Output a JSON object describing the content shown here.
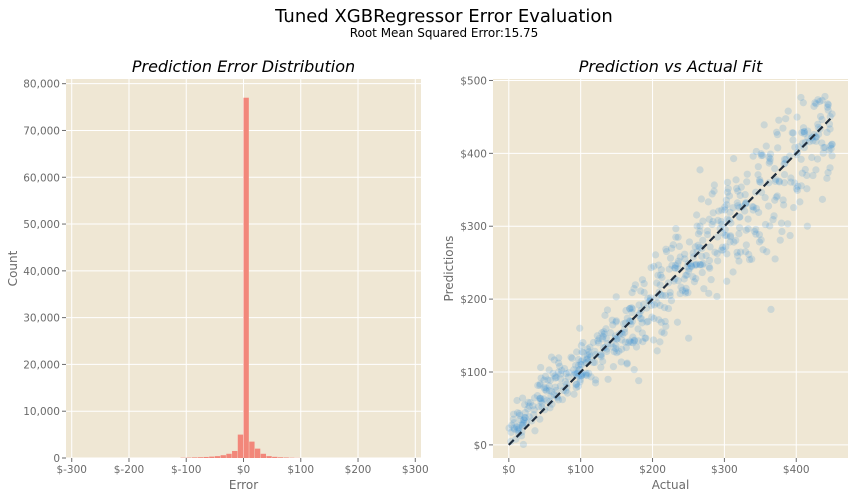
{
  "figure": {
    "title": "Tuned XGBRegressor Error Evaluation",
    "subtitle": "Root Mean Squared Error:15.75",
    "background": "#ffffff",
    "panel_background": "#efe7d4",
    "grid_color": "#ffffff",
    "tick_color": "#6b6b6b"
  },
  "chart_data": [
    {
      "type": "bar",
      "title": "Prediction Error Distribution",
      "xlabel": "Error",
      "ylabel": "Count",
      "xlim": [
        -310,
        310
      ],
      "ylim": [
        0,
        81000
      ],
      "grid": true,
      "color": "#f2877a",
      "xticks": [
        -300,
        -200,
        -100,
        0,
        100,
        200,
        300
      ],
      "xtick_labels": [
        "$-300",
        "$-200",
        "$-100",
        "$0",
        "$100",
        "$200",
        "$300"
      ],
      "yticks": [
        0,
        10000,
        20000,
        30000,
        40000,
        50000,
        60000,
        70000,
        80000
      ],
      "ytick_labels": [
        "0",
        "10,000",
        "20,000",
        "30,000",
        "40,000",
        "50,000",
        "60,000",
        "70,000",
        "80,000"
      ],
      "bin_edges": [
        -110,
        -100,
        -90,
        -80,
        -70,
        -60,
        -50,
        -40,
        -30,
        -20,
        -10,
        0,
        10,
        20,
        30,
        40,
        50,
        60,
        70,
        80,
        90,
        100
      ],
      "values": [
        60,
        80,
        120,
        160,
        220,
        300,
        400,
        600,
        900,
        1500,
        5000,
        77000,
        3500,
        2000,
        900,
        400,
        250,
        150,
        100,
        60,
        30
      ]
    },
    {
      "type": "scatter",
      "title": "Prediction vs Actual Fit",
      "xlabel": "Actual",
      "ylabel": "Predictions",
      "xlim": [
        -22,
        472
      ],
      "ylim": [
        -18,
        502
      ],
      "grid": true,
      "point_color": "#2b88d8",
      "line_color": "#1f2d3d",
      "xticks": [
        0,
        100,
        200,
        300,
        400
      ],
      "xtick_labels": [
        "$0",
        "$100",
        "$200",
        "$300",
        "$400"
      ],
      "yticks": [
        0,
        100,
        200,
        300,
        400,
        500
      ],
      "ytick_labels": [
        "$0",
        "$100",
        "$200",
        "$300",
        "$400",
        "$500"
      ],
      "fit_line": {
        "x": [
          0,
          450
        ],
        "y": [
          0,
          450
        ]
      },
      "clusters": [
        {
          "x": 10,
          "y": 20
        },
        {
          "x": 30,
          "y": 45
        },
        {
          "x": 50,
          "y": 70
        },
        {
          "x": 70,
          "y": 85
        },
        {
          "x": 90,
          "y": 100
        },
        {
          "x": 110,
          "y": 120
        },
        {
          "x": 130,
          "y": 135
        },
        {
          "x": 150,
          "y": 150
        },
        {
          "x": 170,
          "y": 165
        },
        {
          "x": 190,
          "y": 180
        },
        {
          "x": 210,
          "y": 205
        },
        {
          "x": 230,
          "y": 225
        },
        {
          "x": 250,
          "y": 245
        },
        {
          "x": 270,
          "y": 265
        },
        {
          "x": 290,
          "y": 280
        },
        {
          "x": 310,
          "y": 300
        },
        {
          "x": 330,
          "y": 320
        },
        {
          "x": 350,
          "y": 340
        },
        {
          "x": 370,
          "y": 360
        },
        {
          "x": 390,
          "y": 380
        },
        {
          "x": 410,
          "y": 405
        },
        {
          "x": 430,
          "y": 425
        },
        {
          "x": 445,
          "y": 440
        }
      ]
    }
  ]
}
